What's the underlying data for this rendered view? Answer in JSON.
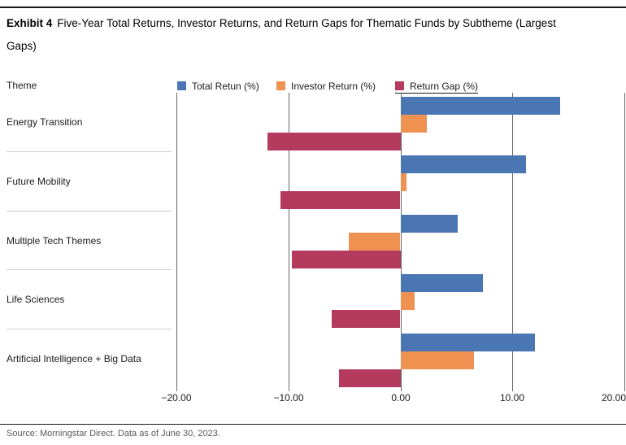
{
  "title": {
    "exhibit": "Exhibit 4",
    "text": "Five-Year Total Returns, Investor Returns, and Return Gaps for Thematic Funds by Subtheme (Largest Gaps)"
  },
  "theme_header": "Theme",
  "legend": [
    {
      "key": "total-return",
      "label": "Total Retun (%)",
      "color": "#4a76b4"
    },
    {
      "key": "investor-return",
      "label": "Investor Return (%)",
      "color": "#ef9150"
    },
    {
      "key": "return-gap",
      "label": "Return Gap (%)",
      "color": "#b43a5e"
    }
  ],
  "source": "Source: Morningstar Direct. Data as of June 30, 2023.",
  "chart_data": {
    "type": "bar",
    "orientation": "horizontal",
    "title": "Five-Year Total Returns, Investor Returns, and Return Gaps for Thematic Funds by Subtheme (Largest Gaps)",
    "categories": [
      "Energy Transition",
      "Future Mobility",
      "Multiple Tech Themes",
      "Life Sciences",
      "Artificial Intelligence + Big Data"
    ],
    "series": [
      {
        "key": "total-return",
        "name": "Total Retun (%)",
        "color": "#4a76b4",
        "values": [
          14.2,
          11.2,
          5.1,
          7.3,
          12.0
        ]
      },
      {
        "key": "investor-return",
        "name": "Investor Return (%)",
        "color": "#ef9150",
        "values": [
          2.3,
          0.5,
          -4.6,
          1.2,
          6.5
        ]
      },
      {
        "key": "return-gap",
        "name": "Return Gap (%)",
        "color": "#b43a5e",
        "values": [
          -11.9,
          -10.7,
          -9.7,
          -6.1,
          -5.5
        ]
      }
    ],
    "xlim": [
      -20,
      20
    ],
    "xticks": [
      -20,
      -10,
      0,
      10,
      20
    ],
    "xtick_labels": [
      "−20.00",
      "−10.00",
      "0.00",
      "10.00",
      "20.00"
    ],
    "grid": true,
    "legend_position": "top"
  }
}
